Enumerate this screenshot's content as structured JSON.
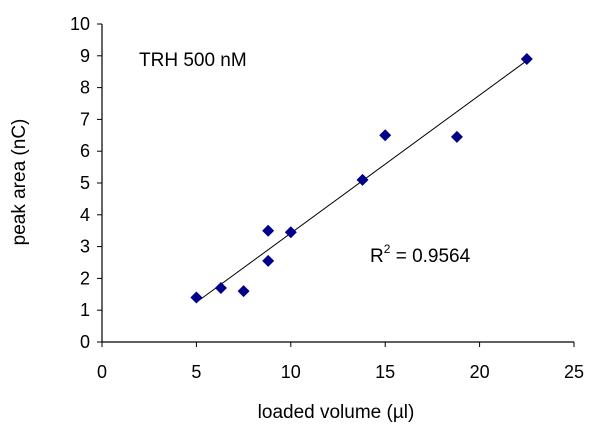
{
  "chart_data": {
    "type": "scatter",
    "title": "",
    "xlabel": "loaded volume (µl)",
    "ylabel": "peak area (nC)",
    "xlim": [
      0,
      25
    ],
    "ylim": [
      0,
      10
    ],
    "x_ticks": [
      0,
      5,
      10,
      15,
      20,
      25
    ],
    "y_ticks": [
      0,
      1,
      2,
      3,
      4,
      5,
      6,
      7,
      8,
      9,
      10
    ],
    "grid": false,
    "legend": "none",
    "series": [
      {
        "marker": "diamond",
        "color": "#00008B",
        "x": [
          5.0,
          6.3,
          7.5,
          8.8,
          8.8,
          10.0,
          13.8,
          15.0,
          18.8,
          22.5
        ],
        "y": [
          1.4,
          1.7,
          1.6,
          3.5,
          2.55,
          3.45,
          5.1,
          6.5,
          6.45,
          8.9
        ]
      }
    ],
    "trendline": {
      "type": "linear",
      "x": [
        5.0,
        22.5
      ],
      "y": [
        1.25,
        8.85
      ],
      "color": "#000000"
    },
    "annotations": {
      "label": "TRH 500 nM",
      "r2_prefix": "R",
      "r2_sup": "2",
      "r2_value": " = 0.9564"
    }
  }
}
